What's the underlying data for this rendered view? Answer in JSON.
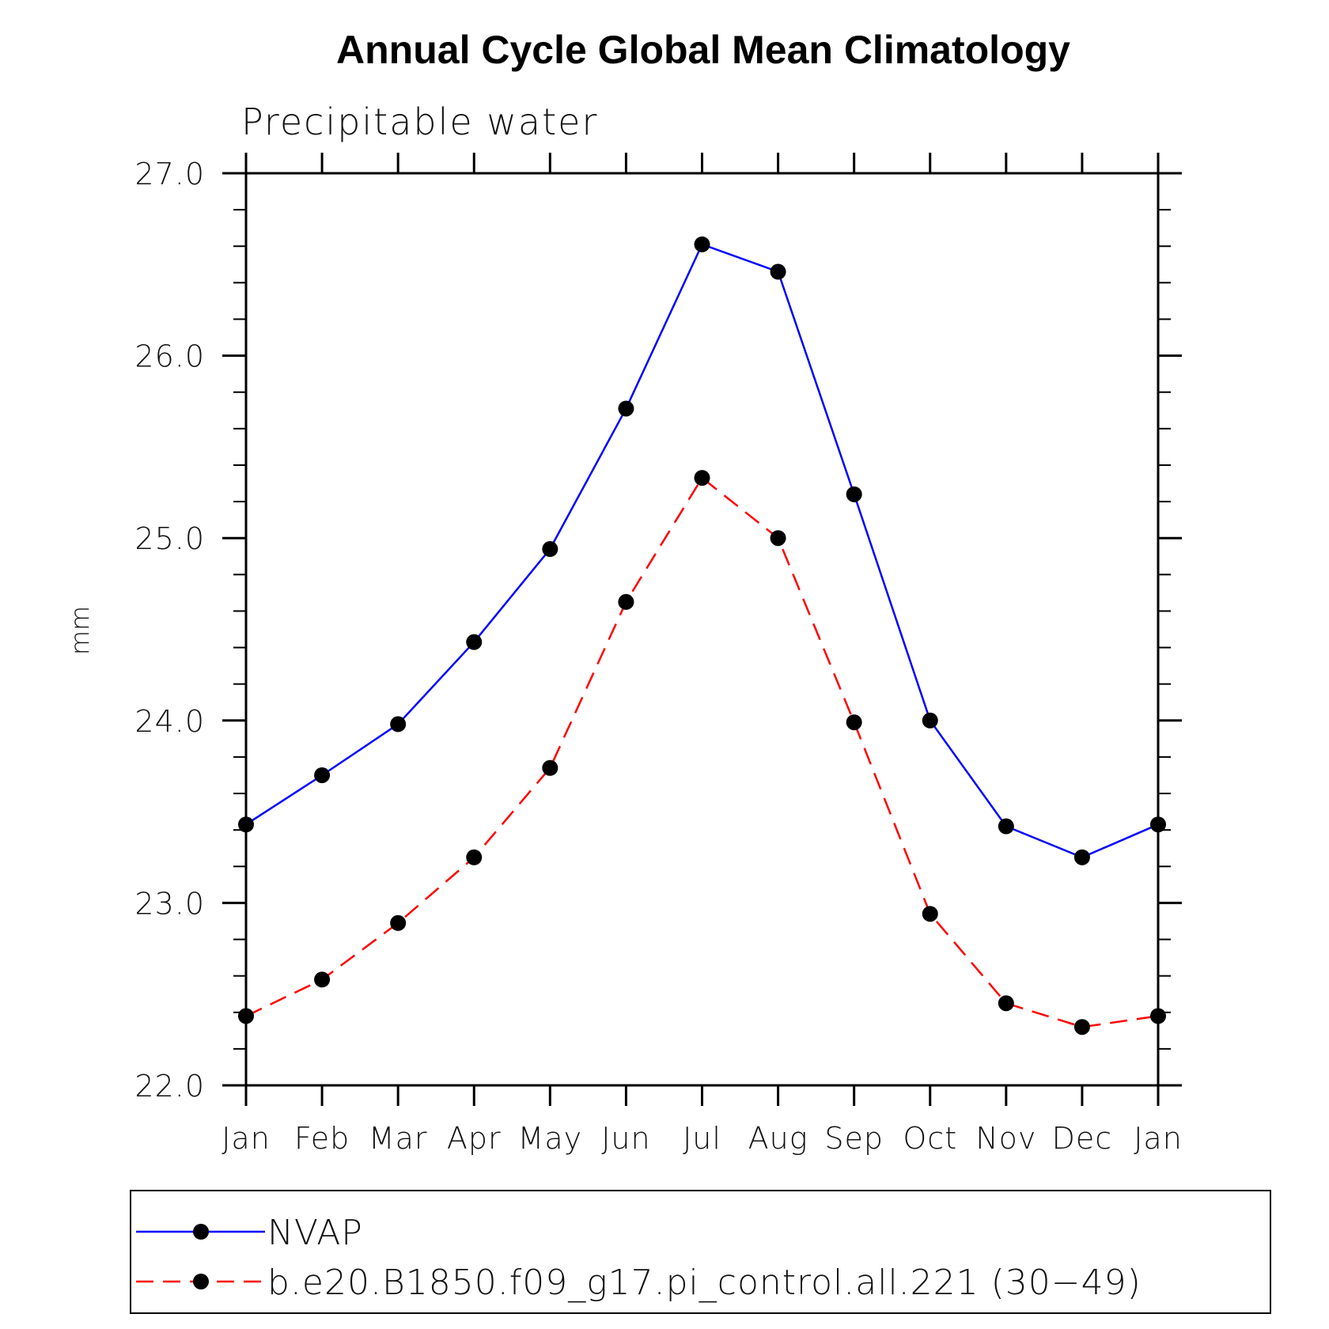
{
  "chart_data": {
    "type": "line",
    "title": "Annual Cycle Global Mean Climatology",
    "subtitle": "Precipitable water",
    "xlabel": "",
    "ylabel": "mm",
    "categories": [
      "Jan",
      "Feb",
      "Mar",
      "Apr",
      "May",
      "Jun",
      "Jul",
      "Aug",
      "Sep",
      "Oct",
      "Nov",
      "Dec",
      "Jan"
    ],
    "ylim": [
      22.0,
      27.0
    ],
    "yticks": [
      "22.0",
      "23.0",
      "24.0",
      "25.0",
      "26.0",
      "27.0"
    ],
    "grid": false,
    "legend_position": "bottom",
    "series": [
      {
        "name": "NVAP",
        "color": "#0000ff",
        "dash": "solid",
        "values": [
          23.43,
          23.7,
          23.98,
          24.43,
          24.94,
          25.71,
          26.61,
          26.46,
          25.24,
          24.0,
          23.42,
          23.25,
          23.43
        ]
      },
      {
        "name": "b.e20.B1850.f09_g17.pi_control.all.221 (30−49)",
        "color": "#ff0000",
        "dash": "dashed",
        "values": [
          22.38,
          22.58,
          22.89,
          23.25,
          23.74,
          24.65,
          25.33,
          25.0,
          23.99,
          22.94,
          22.45,
          22.32,
          22.38
        ]
      }
    ]
  }
}
